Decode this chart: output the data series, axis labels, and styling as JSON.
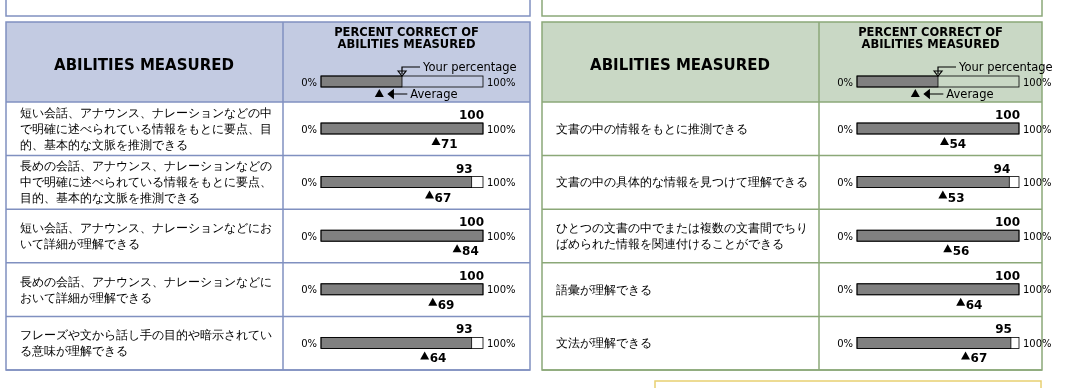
{
  "chart_data": [
    {
      "type": "bar",
      "orientation": "horizontal",
      "title": "PERCENT CORRECT OF\nABILITIES MEASURED",
      "ylabel": "ABILITIES MEASURED",
      "categories": [
        "短い会話、アナウンス、ナレーションなどの中で明確に述べられている情報をもとに要点、目的、基本的な文脈を推測できる",
        "長めの会話、アナウンス、ナレーションなどの中で明確に述べられている情報をもとに要点、目的、基本的な文脈を推測できる",
        "短い会話、アナウンス、ナレーションなどにおいて詳細が理解できる",
        "長めの会話、アナウンス、ナレーションなどにおいて詳細が理解できる",
        "フレーズや文から話し手の目的や暗示されている意味が理解できる"
      ],
      "xlim": [
        0,
        100
      ],
      "annotations": [
        "0%",
        "100%"
      ],
      "legend": "top",
      "data_labels": true,
      "series": [
        {
          "name": "Your percentage",
          "color": "#808080",
          "values": [
            100,
            93,
            100,
            100,
            93
          ]
        },
        {
          "name": "Average",
          "type": "scatter",
          "marker": "triangle",
          "color": "#000000",
          "values": [
            71,
            67,
            84,
            69,
            64
          ]
        }
      ]
    },
    {
      "type": "bar",
      "orientation": "horizontal",
      "title": "PERCENT CORRECT OF\nABILITIES MEASURED",
      "ylabel": "ABILITIES MEASURED",
      "categories": [
        "文書の中の情報をもとに推測できる",
        "文書の中の具体的な情報を見つけて理解できる",
        "ひとつの文書の中でまたは複数の文書間でちりばめられた情報を関連付けることができる",
        "語彙が理解できる",
        "文法が理解できる"
      ],
      "xlim": [
        0,
        100
      ],
      "annotations": [
        "0%",
        "100%"
      ],
      "legend": "top",
      "data_labels": true,
      "series": [
        {
          "name": "Your percentage",
          "color": "#808080",
          "values": [
            100,
            94,
            100,
            100,
            95
          ]
        },
        {
          "name": "Average",
          "type": "scatter",
          "marker": "triangle",
          "color": "#000000",
          "values": [
            54,
            53,
            56,
            64,
            67
          ]
        }
      ]
    }
  ]
}
